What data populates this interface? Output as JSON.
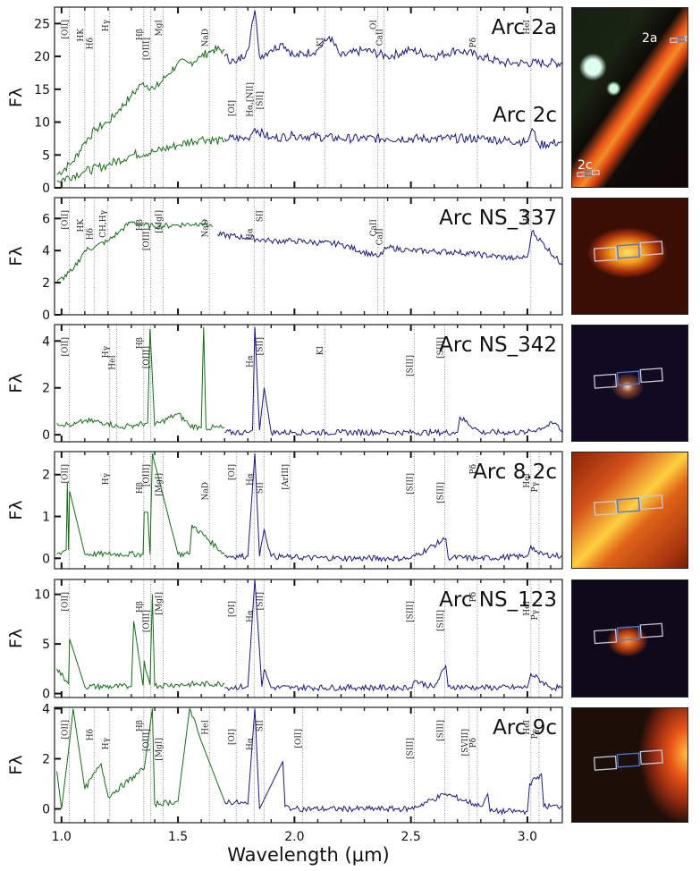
{
  "figure": {
    "xlabel": "Wavelength (μm)",
    "ylabel": "Fλ",
    "xlim": [
      0.97,
      3.15
    ],
    "xticks": [
      1.0,
      1.5,
      2.0,
      2.5,
      3.0
    ],
    "xtick_labels": [
      "1.0",
      "1.5",
      "2.0",
      "2.5",
      "3.0"
    ],
    "colors": {
      "optical": "#1a6b1a",
      "nir": "#1a1a7e",
      "line_marker": "#555555"
    }
  },
  "chart_data": [
    {
      "type": "line",
      "title": "Arc 2a / Arc 2c",
      "labels": [
        "Arc 2a",
        "Arc 2c"
      ],
      "xlabel": "",
      "ylabel": "Fλ",
      "ylim": [
        0,
        27.5
      ],
      "yticks": [
        0,
        5,
        10,
        15,
        20,
        25
      ],
      "series": [
        {
          "name": "Arc 2a (optical)",
          "color": "#1a6b1a",
          "x": [
            0.98,
            1.05,
            1.1,
            1.15,
            1.2,
            1.25,
            1.3,
            1.35,
            1.4,
            1.45,
            1.5,
            1.55,
            1.6,
            1.65,
            1.7
          ],
          "values": [
            2,
            4,
            7,
            9,
            10,
            12,
            14,
            16,
            15,
            17,
            19,
            19,
            20,
            21,
            21
          ]
        },
        {
          "name": "Arc 2a (NIR)",
          "color": "#1a1a7e",
          "x": [
            1.7,
            1.75,
            1.8,
            1.83,
            1.85,
            1.9,
            1.95,
            2.0,
            2.1,
            2.15,
            2.2,
            2.3,
            2.4,
            2.5,
            2.6,
            2.7,
            2.8,
            2.9,
            2.95,
            3.15
          ],
          "values": [
            20,
            19,
            21,
            27,
            20,
            21,
            22,
            20,
            21,
            23,
            20,
            21,
            20,
            21,
            20,
            21,
            20,
            19,
            19,
            19
          ]
        },
        {
          "name": "Arc 2c (optical)",
          "color": "#1a6b1a",
          "x": [
            0.98,
            1.1,
            1.2,
            1.3,
            1.4,
            1.5,
            1.6,
            1.7
          ],
          "values": [
            1,
            2.5,
            3.5,
            5,
            5.5,
            6.5,
            7.5,
            7
          ]
        },
        {
          "name": "Arc 2c (NIR)",
          "color": "#1a1a7e",
          "x": [
            1.7,
            1.8,
            1.83,
            1.9,
            2.0,
            2.2,
            2.4,
            2.6,
            2.8,
            3.0,
            3.02,
            3.05,
            3.15
          ],
          "values": [
            7.5,
            7.5,
            9,
            7.5,
            8,
            7.5,
            7.5,
            7.5,
            7.5,
            7,
            9,
            6.5,
            7
          ]
        }
      ],
      "line_markers": [
        {
          "label": "[OII]",
          "x": 1.033
        },
        {
          "label": "HK",
          "x": 1.1
        },
        {
          "label": "Hδ",
          "x": 1.14
        },
        {
          "label": "Hγ",
          "x": 1.207
        },
        {
          "label": "Hβ",
          "x": 1.353
        },
        {
          "label": "[OIII]",
          "x": 1.383
        },
        {
          "label": "MgI",
          "x": 1.436
        },
        {
          "label": "NaD",
          "x": 1.635
        },
        {
          "label": "[OI]",
          "x": 1.75
        },
        {
          "label": "Hα,[NII]",
          "x": 1.827
        },
        {
          "label": "[SII]",
          "x": 1.87
        },
        {
          "label": "KI",
          "x": 2.13
        },
        {
          "label": "OI",
          "x": 2.358
        },
        {
          "label": "CaII",
          "x": 2.385
        },
        {
          "label": "Pδ",
          "x": 2.785
        },
        {
          "label": "HeI",
          "x": 3.015
        }
      ]
    },
    {
      "type": "line",
      "title": "Arc NS_337",
      "labels": [
        "Arc NS_337"
      ],
      "ylim": [
        0,
        7.3
      ],
      "yticks": [
        0,
        2,
        4,
        6
      ],
      "series": [
        {
          "name": "optical",
          "color": "#1a6b1a",
          "x": [
            0.98,
            1.05,
            1.1,
            1.15,
            1.2,
            1.25,
            1.3,
            1.35,
            1.4,
            1.5,
            1.6,
            1.65
          ],
          "values": [
            2,
            2.8,
            4,
            4.3,
            4.6,
            5.2,
            5.8,
            5.6,
            5.5,
            5.6,
            5.7,
            5.5
          ]
        },
        {
          "name": "NIR",
          "color": "#1a1a7e",
          "x": [
            1.67,
            1.8,
            1.9,
            2.0,
            2.2,
            2.36,
            2.4,
            2.5,
            2.7,
            2.95,
            3.0,
            3.02,
            3.15
          ],
          "values": [
            5,
            4.8,
            4.6,
            4.6,
            4.4,
            3.6,
            4.2,
            4,
            3.9,
            3.5,
            3.6,
            5.2,
            3.1
          ]
        }
      ],
      "line_markers": [
        {
          "label": "[OII]",
          "x": 1.033
        },
        {
          "label": "HK",
          "x": 1.1
        },
        {
          "label": "Hδ",
          "x": 1.14
        },
        {
          "label": "CH,Hγ",
          "x": 1.197
        },
        {
          "label": "Hβ",
          "x": 1.353
        },
        {
          "label": "[OIII]",
          "x": 1.383
        },
        {
          "label": "[MgI]",
          "x": 1.436
        },
        {
          "label": "NaD",
          "x": 1.635
        },
        {
          "label": "Hα",
          "x": 1.827
        },
        {
          "label": "SII",
          "x": 1.87
        },
        {
          "label": "CaII",
          "x": 2.358
        },
        {
          "label": "CaII",
          "x": 2.385
        },
        {
          "label": "HeI",
          "x": 3.015
        }
      ]
    },
    {
      "type": "line",
      "title": "Arc NS_342",
      "labels": [
        "Arc NS_342"
      ],
      "ylim": [
        -0.3,
        4.7
      ],
      "yticks": [
        0,
        2,
        4
      ],
      "series": [
        {
          "name": "optical",
          "color": "#1a6b1a",
          "x": [
            0.98,
            1.05,
            1.1,
            1.2,
            1.25,
            1.3,
            1.37,
            1.38,
            1.4,
            1.5,
            1.55,
            1.6,
            1.61,
            1.62,
            1.7
          ],
          "values": [
            0.5,
            0.4,
            0.6,
            0.5,
            0.3,
            0.4,
            0.5,
            4.5,
            0.4,
            0.9,
            0.4,
            0.3,
            4.6,
            0.3,
            0.3
          ]
        },
        {
          "name": "NIR",
          "color": "#1a1a7e",
          "x": [
            1.7,
            1.8,
            1.82,
            1.83,
            1.85,
            1.87,
            1.9,
            2.0,
            2.2,
            2.4,
            2.6,
            2.7,
            2.71,
            2.8,
            3.0,
            3.12,
            3.15
          ],
          "values": [
            0.1,
            0.1,
            0.2,
            4.6,
            0.2,
            2.0,
            0.1,
            0.1,
            0.1,
            0.1,
            0.1,
            0.1,
            0.75,
            0.1,
            0.1,
            0.5,
            0.1
          ]
        }
      ],
      "line_markers": [
        {
          "label": "[OII]",
          "x": 1.033
        },
        {
          "label": "Hγ",
          "x": 1.207
        },
        {
          "label": "HeI",
          "x": 1.237
        },
        {
          "label": "Hβ",
          "x": 1.353
        },
        {
          "label": "[OIII]",
          "x": 1.383
        },
        {
          "label": "Hα",
          "x": 1.827
        },
        {
          "label": "[SII]",
          "x": 1.87
        },
        {
          "label": "KI",
          "x": 2.13
        },
        {
          "label": "[SIII]",
          "x": 2.515
        },
        {
          "label": "[SIII]",
          "x": 2.645
        }
      ]
    },
    {
      "type": "line",
      "title": "Arc 8.2c",
      "labels": [
        "Arc 8.2c"
      ],
      "ylim": [
        -0.25,
        2.55
      ],
      "yticks": [
        0,
        1,
        2
      ],
      "series": [
        {
          "name": "optical",
          "color": "#1a6b1a",
          "x": [
            0.98,
            1.02,
            1.025,
            1.03,
            1.035,
            1.1,
            1.2,
            1.35,
            1.355,
            1.37,
            1.38,
            1.39,
            1.5,
            1.55,
            1.56,
            1.7
          ],
          "values": [
            0.1,
            0.2,
            1.8,
            0.2,
            1.6,
            0.1,
            0.1,
            0.1,
            1.1,
            1.1,
            0.1,
            2.5,
            0.1,
            0.1,
            0.8,
            0.1
          ]
        },
        {
          "name": "NIR",
          "color": "#1a1a7e",
          "x": [
            1.7,
            1.8,
            1.83,
            1.85,
            1.87,
            1.9,
            2.0,
            2.2,
            2.5,
            2.65,
            2.66,
            2.8,
            3.0,
            3.015,
            3.05,
            3.15
          ],
          "values": [
            0.05,
            0.05,
            2.5,
            0.05,
            0.7,
            0.05,
            0.02,
            0.0,
            0.0,
            0.47,
            0.02,
            0.0,
            0.05,
            0.3,
            0.1,
            0.05
          ]
        }
      ],
      "line_markers": [
        {
          "label": "[OII]",
          "x": 1.033
        },
        {
          "label": "Hγ",
          "x": 1.207
        },
        {
          "label": "Hβ",
          "x": 1.353
        },
        {
          "label": "[OIII]",
          "x": 1.383
        },
        {
          "label": "[MgI]",
          "x": 1.436
        },
        {
          "label": "NaD",
          "x": 1.635
        },
        {
          "label": "[OI]",
          "x": 1.75
        },
        {
          "label": "Hα",
          "x": 1.827
        },
        {
          "label": "SII",
          "x": 1.87
        },
        {
          "label": "[ArIII]",
          "x": 1.98
        },
        {
          "label": "[SIII]",
          "x": 2.515
        },
        {
          "label": "[SIII]",
          "x": 2.645
        },
        {
          "label": "Pδ",
          "x": 2.785
        },
        {
          "label": "HeI",
          "x": 3.015
        },
        {
          "label": "Pγ",
          "x": 3.05
        }
      ]
    },
    {
      "type": "line",
      "title": "Arc NS_123",
      "labels": [
        "Arc NS_123"
      ],
      "ylim": [
        -0.4,
        11.5
      ],
      "yticks": [
        0,
        5,
        10
      ],
      "series": [
        {
          "name": "optical",
          "color": "#1a6b1a",
          "x": [
            0.98,
            1.03,
            1.035,
            1.1,
            1.1,
            1.3,
            1.31,
            1.35,
            1.355,
            1.38,
            1.39,
            1.4,
            1.5,
            1.7
          ],
          "values": [
            2.5,
            1.0,
            5.5,
            0.7,
            0.7,
            0.7,
            7.3,
            0.8,
            3.3,
            0.9,
            10,
            0.8,
            0.9,
            1.0
          ]
        },
        {
          "name": "NIR",
          "color": "#1a1a7e",
          "x": [
            1.7,
            1.8,
            1.83,
            1.86,
            1.87,
            1.9,
            2.0,
            2.5,
            2.515,
            2.6,
            2.65,
            2.66,
            2.8,
            3.0,
            3.015,
            3.1,
            3.15
          ],
          "values": [
            0.6,
            0.7,
            11.5,
            0.7,
            2.4,
            0.6,
            0.6,
            0.6,
            1.3,
            0.6,
            2.8,
            0.7,
            0.6,
            0.6,
            2.0,
            0.6,
            0.6
          ]
        }
      ],
      "line_markers": [
        {
          "label": "[OII]",
          "x": 1.033
        },
        {
          "label": "Hβ",
          "x": 1.353
        },
        {
          "label": "[OIII]",
          "x": 1.383
        },
        {
          "label": "[MgI]",
          "x": 1.436
        },
        {
          "label": "[OI]",
          "x": 1.75
        },
        {
          "label": "Hα",
          "x": 1.827
        },
        {
          "label": "[SII]",
          "x": 1.87
        },
        {
          "label": "[SIII]",
          "x": 2.515
        },
        {
          "label": "[SIII]",
          "x": 2.645
        },
        {
          "label": "Pδ",
          "x": 2.785
        },
        {
          "label": "HeI",
          "x": 3.015
        },
        {
          "label": "Pγ",
          "x": 3.05
        }
      ]
    },
    {
      "type": "line",
      "title": "Arc 9c",
      "labels": [
        "Arc 9c"
      ],
      "ylim": [
        -0.55,
        4.05
      ],
      "yticks": [
        0,
        2,
        4
      ],
      "series": [
        {
          "name": "optical",
          "color": "#1a6b1a",
          "x": [
            0.98,
            1.0,
            1.04,
            1.05,
            1.1,
            1.17,
            1.2,
            1.355,
            1.39,
            1.4,
            1.5,
            1.55,
            1.6,
            1.7
          ],
          "values": [
            1.5,
            0.0,
            3.1,
            4.0,
            0.8,
            1.8,
            0.5,
            1.6,
            4.0,
            0.2,
            0.3,
            4.0,
            2.7,
            0.3
          ]
        },
        {
          "name": "NIR",
          "color": "#1a1a7e",
          "x": [
            1.7,
            1.8,
            1.83,
            1.85,
            1.95,
            1.96,
            2.0,
            2.5,
            2.65,
            2.8,
            2.83,
            2.84,
            3.0,
            3.01,
            3.06,
            3.07,
            3.15
          ],
          "values": [
            0.3,
            0.2,
            4.0,
            0.0,
            1.9,
            0.1,
            0.0,
            0.0,
            0.6,
            0.1,
            0.6,
            -0.1,
            -0.1,
            1.0,
            1.4,
            0.1,
            0.1
          ]
        }
      ],
      "line_markers": [
        {
          "label": "[OII]",
          "x": 1.033
        },
        {
          "label": "Hδ",
          "x": 1.14
        },
        {
          "label": "Hγ",
          "x": 1.207
        },
        {
          "label": "Hβ",
          "x": 1.353
        },
        {
          "label": "[OIII]",
          "x": 1.383
        },
        {
          "label": "[MgI]",
          "x": 1.436
        },
        {
          "label": "HeI",
          "x": 1.635
        },
        {
          "label": "[OI]",
          "x": 1.75
        },
        {
          "label": "Hα",
          "x": 1.827
        },
        {
          "label": "SII",
          "x": 1.87
        },
        {
          "label": "[OII]",
          "x": 2.035
        },
        {
          "label": "[SIII]",
          "x": 2.515
        },
        {
          "label": "[SIII]",
          "x": 2.645
        },
        {
          "label": "[SVIII]",
          "x": 2.75
        },
        {
          "label": "Pδ",
          "x": 2.785
        },
        {
          "label": "HeI",
          "x": 3.015
        },
        {
          "label": "Pγ",
          "x": 3.05
        }
      ]
    }
  ],
  "thumbnails": [
    {
      "name": "arc-2",
      "labels": [
        "2a",
        "2c"
      ],
      "style": "lens"
    },
    {
      "name": "arc-ns337",
      "style": "bright"
    },
    {
      "name": "arc-ns342",
      "style": "dark"
    },
    {
      "name": "arc-8.2c",
      "style": "diag"
    },
    {
      "name": "arc-ns123",
      "style": "dark-orange"
    },
    {
      "name": "arc-9c",
      "style": "edge"
    }
  ]
}
